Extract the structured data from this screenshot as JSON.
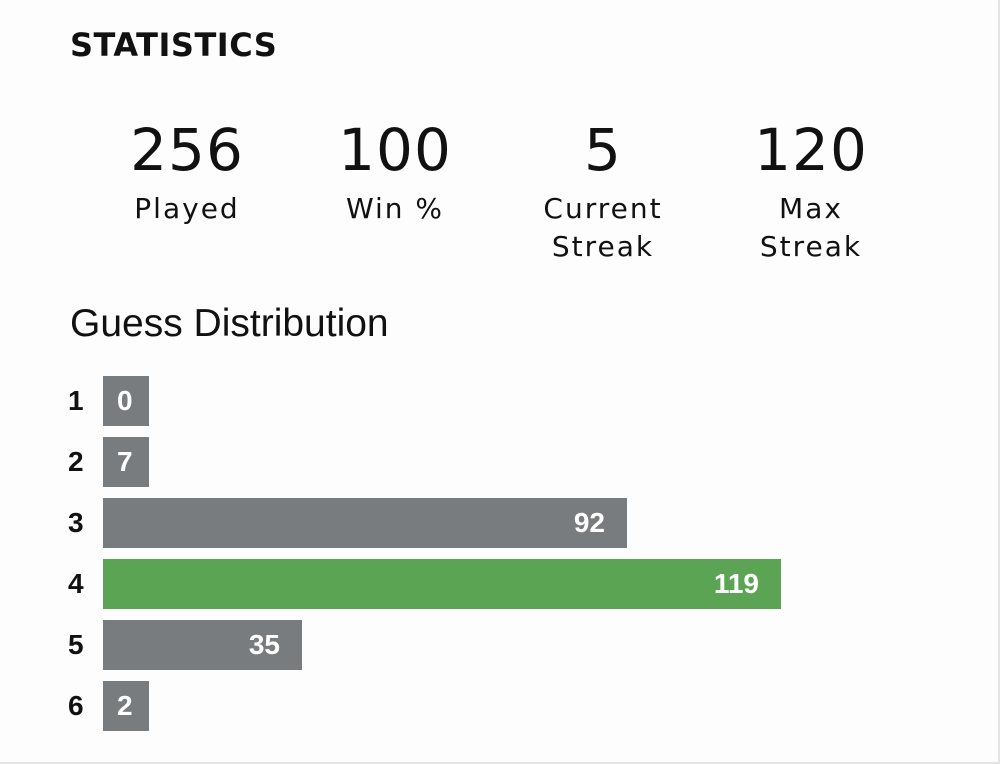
{
  "title": "STATISTICS",
  "stats": [
    {
      "value": "256",
      "label": "Played"
    },
    {
      "value": "100",
      "label": "Win %"
    },
    {
      "value": "5",
      "label": "Current\nStreak"
    },
    {
      "value": "120",
      "label": "Max\nStreak"
    }
  ],
  "distribution": {
    "title": "Guess Distribution",
    "rows": [
      {
        "guess": "1",
        "count": 0,
        "highlight": false
      },
      {
        "guess": "2",
        "count": 7,
        "highlight": false
      },
      {
        "guess": "3",
        "count": 92,
        "highlight": false
      },
      {
        "guess": "4",
        "count": 119,
        "highlight": true
      },
      {
        "guess": "5",
        "count": 35,
        "highlight": false
      },
      {
        "guess": "6",
        "count": 2,
        "highlight": false
      }
    ]
  },
  "colors": {
    "bar_default": "#787c7e",
    "bar_highlight": "#5aa454"
  }
}
